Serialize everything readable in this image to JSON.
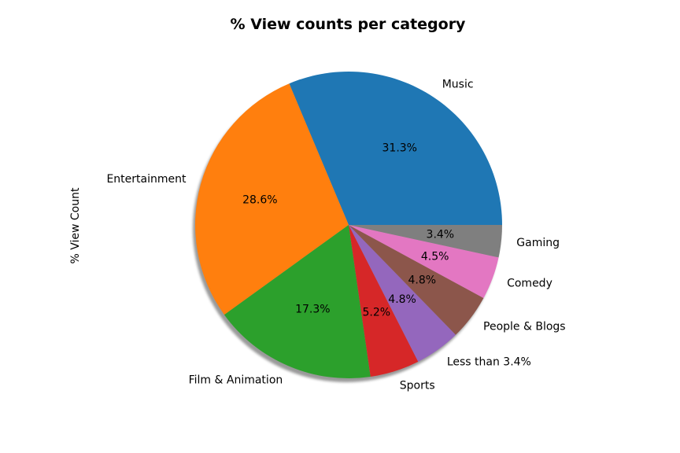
{
  "chart_data": {
    "type": "pie",
    "title": "% View counts per category",
    "ylabel": "% View Count",
    "shadow": true,
    "start_angle_deg": 0,
    "direction": "counterclockwise",
    "slices": [
      {
        "label": "Music",
        "value": 31.3,
        "value_label": "31.3%",
        "color": "#1f77b4"
      },
      {
        "label": "Entertainment",
        "value": 28.6,
        "value_label": "28.6%",
        "color": "#ff7f0e"
      },
      {
        "label": "Film & Animation",
        "value": 17.3,
        "value_label": "17.3%",
        "color": "#2ca02c"
      },
      {
        "label": "Sports",
        "value": 5.2,
        "value_label": "5.2%",
        "color": "#d62728"
      },
      {
        "label": "Less than 3.4%",
        "value": 4.8,
        "value_label": "4.8%",
        "color": "#9467bd"
      },
      {
        "label": "People & Blogs",
        "value": 4.8,
        "value_label": "4.8%",
        "color": "#8c564b"
      },
      {
        "label": "Comedy",
        "value": 4.5,
        "value_label": "4.5%",
        "color": "#e377c2"
      },
      {
        "label": "Gaming",
        "value": 3.4,
        "value_label": "3.4%",
        "color": "#7f7f7f"
      }
    ]
  }
}
